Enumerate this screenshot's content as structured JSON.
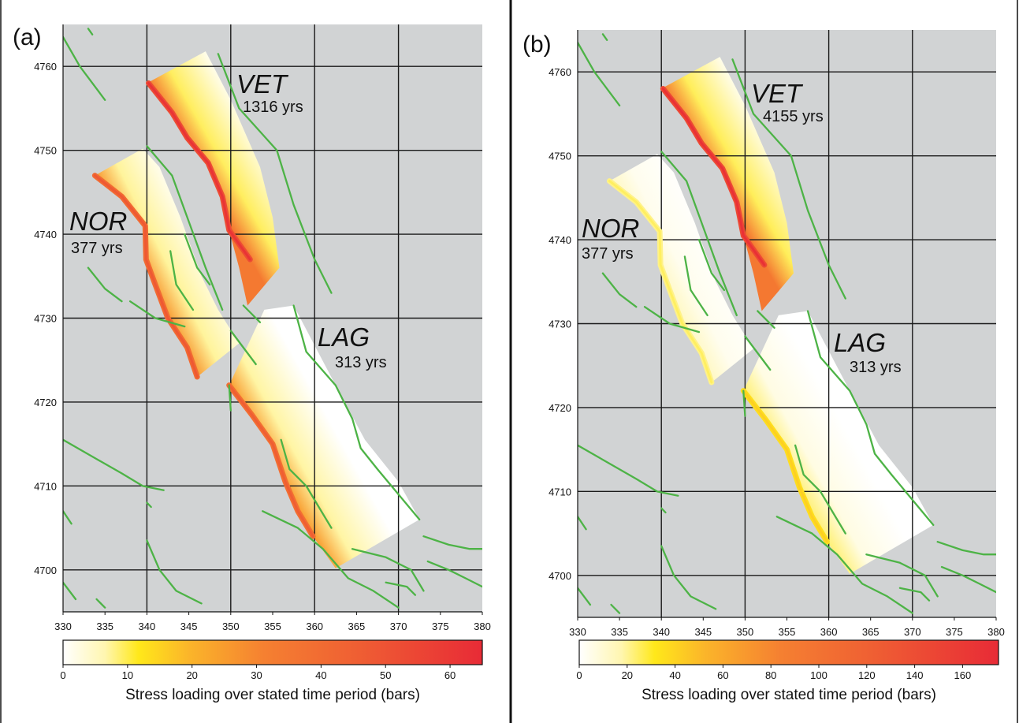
{
  "chart_data": [
    {
      "type": "heatmap",
      "panel_label": "(a)",
      "xlim": [
        330,
        380
      ],
      "ylim": [
        4695,
        4765
      ],
      "x_ticks": [
        330,
        335,
        340,
        345,
        350,
        355,
        360,
        365,
        370,
        375,
        380
      ],
      "y_ticks": [
        4700,
        4710,
        4720,
        4730,
        4740,
        4750,
        4760
      ],
      "grid_x": [
        340,
        350,
        360,
        370
      ],
      "grid_y": [
        4700,
        4710,
        4720,
        4730,
        4740,
        4750,
        4760
      ],
      "colorbar": {
        "label": "Stress loading over stated time period (bars)",
        "min": 0,
        "max": 65,
        "ticks": [
          0,
          10,
          20,
          30,
          40,
          50,
          60
        ]
      },
      "faults": [
        {
          "name": "VET",
          "period": "1316 yrs",
          "max_stress": 62,
          "trace": [
            [
              340.2,
              4758
            ],
            [
              343,
              4754.5
            ],
            [
              344.8,
              4751.5
            ],
            [
              347.3,
              4748.5
            ],
            [
              349,
              4744.5
            ],
            [
              349.8,
              4740.5
            ],
            [
              352.3,
              4737
            ]
          ],
          "patch": [
            [
              340,
              4758
            ],
            [
              347,
              4761.8
            ],
            [
              350,
              4756
            ],
            [
              353.5,
              4748
            ],
            [
              355,
              4742
            ],
            [
              355.8,
              4736
            ],
            [
              352,
              4731.5
            ],
            [
              351,
              4736
            ],
            [
              349.8,
              4740.5
            ],
            [
              349,
              4744.5
            ],
            [
              347.3,
              4748.5
            ],
            [
              344.8,
              4751.5
            ],
            [
              343,
              4754.5
            ]
          ]
        },
        {
          "name": "NOR",
          "period": "377 yrs",
          "max_stress": 48,
          "trace": [
            [
              333.8,
              4747
            ],
            [
              337,
              4744.5
            ],
            [
              339.8,
              4741
            ],
            [
              339.9,
              4737
            ],
            [
              341,
              4734
            ],
            [
              342.5,
              4730
            ],
            [
              344.8,
              4726.5
            ],
            [
              346,
              4723
            ]
          ],
          "patch": [
            [
              333.8,
              4747
            ],
            [
              339.5,
              4750.2
            ],
            [
              341.5,
              4748
            ],
            [
              344,
              4742
            ],
            [
              346.5,
              4735
            ],
            [
              348.5,
              4731
            ],
            [
              351,
              4727
            ],
            [
              346,
              4723
            ],
            [
              344.8,
              4726.5
            ],
            [
              342.5,
              4730
            ],
            [
              341,
              4734
            ],
            [
              339.9,
              4737
            ],
            [
              339.8,
              4741
            ],
            [
              337,
              4744.5
            ]
          ]
        },
        {
          "name": "LAG",
          "period": "313 yrs",
          "max_stress": 46,
          "trace": [
            [
              349.8,
              4722
            ],
            [
              352.5,
              4718.5
            ],
            [
              355,
              4715
            ],
            [
              356.5,
              4710.5
            ],
            [
              358,
              4707
            ],
            [
              359.8,
              4704
            ]
          ],
          "patch": [
            [
              349.8,
              4722
            ],
            [
              354,
              4731
            ],
            [
              357.5,
              4731.5
            ],
            [
              362.5,
              4722
            ],
            [
              366,
              4715.5
            ],
            [
              370,
              4710.5
            ],
            [
              372.5,
              4706
            ],
            [
              362.5,
              4700.2
            ],
            [
              359.8,
              4704
            ],
            [
              358,
              4707
            ],
            [
              356.5,
              4710.5
            ],
            [
              355,
              4715
            ],
            [
              352.5,
              4718.5
            ]
          ]
        }
      ]
    },
    {
      "type": "heatmap",
      "panel_label": "(b)",
      "xlim": [
        330,
        380
      ],
      "ylim": [
        4695,
        4765
      ],
      "x_ticks": [
        330,
        335,
        340,
        345,
        350,
        355,
        360,
        365,
        370,
        375,
        380
      ],
      "y_ticks": [
        4700,
        4710,
        4720,
        4730,
        4740,
        4750,
        4760
      ],
      "grid_x": [
        340,
        350,
        360,
        370
      ],
      "grid_y": [
        4700,
        4710,
        4720,
        4730,
        4740,
        4750,
        4760
      ],
      "colorbar": {
        "label": "Stress loading over stated time period (bars)",
        "min": 0,
        "max": 175,
        "ticks": [
          0,
          20,
          40,
          60,
          80,
          100,
          120,
          140,
          160
        ]
      },
      "faults": [
        {
          "name": "VET",
          "period": "4155 yrs",
          "max_stress": 170,
          "trace": [
            [
              340.2,
              4758
            ],
            [
              343,
              4754.5
            ],
            [
              344.8,
              4751.5
            ],
            [
              347.3,
              4748.5
            ],
            [
              349,
              4744.5
            ],
            [
              349.8,
              4740.5
            ],
            [
              352.3,
              4737
            ]
          ],
          "patch": [
            [
              340,
              4758
            ],
            [
              347,
              4761.8
            ],
            [
              350,
              4756
            ],
            [
              353.5,
              4748
            ],
            [
              355,
              4742
            ],
            [
              355.8,
              4736
            ],
            [
              352,
              4731.5
            ],
            [
              351,
              4736
            ],
            [
              349.8,
              4740.5
            ],
            [
              349,
              4744.5
            ],
            [
              347.3,
              4748.5
            ],
            [
              344.8,
              4751.5
            ],
            [
              343,
              4754.5
            ]
          ]
        },
        {
          "name": "NOR",
          "period": "377 yrs",
          "max_stress": 25,
          "trace": [
            [
              333.8,
              4747
            ],
            [
              337,
              4744.5
            ],
            [
              339.8,
              4741
            ],
            [
              339.9,
              4737
            ],
            [
              341,
              4734
            ],
            [
              342.5,
              4730
            ],
            [
              344.8,
              4726.5
            ],
            [
              346,
              4723
            ]
          ],
          "patch": [
            [
              333.8,
              4747
            ],
            [
              339.5,
              4750.2
            ],
            [
              341.5,
              4748
            ],
            [
              344,
              4742
            ],
            [
              346.5,
              4735
            ],
            [
              348.5,
              4731
            ],
            [
              351,
              4727
            ],
            [
              346,
              4723
            ],
            [
              344.8,
              4726.5
            ],
            [
              342.5,
              4730
            ],
            [
              341,
              4734
            ],
            [
              339.9,
              4737
            ],
            [
              339.8,
              4741
            ],
            [
              337,
              4744.5
            ]
          ]
        },
        {
          "name": "LAG",
          "period": "313 yrs",
          "max_stress": 42,
          "trace": [
            [
              349.8,
              4722
            ],
            [
              352.5,
              4718.5
            ],
            [
              355,
              4715
            ],
            [
              356.5,
              4710.5
            ],
            [
              358,
              4707
            ],
            [
              359.8,
              4704
            ]
          ],
          "patch": [
            [
              349.8,
              4722
            ],
            [
              354,
              4731
            ],
            [
              357.5,
              4731.5
            ],
            [
              362.5,
              4722
            ],
            [
              366,
              4715.5
            ],
            [
              370,
              4710.5
            ],
            [
              372.5,
              4706
            ],
            [
              362.5,
              4700.2
            ],
            [
              359.8,
              4704
            ],
            [
              358,
              4707
            ],
            [
              356.5,
              4710.5
            ],
            [
              355,
              4715
            ],
            [
              352.5,
              4718.5
            ]
          ]
        }
      ],
      "mapped_faults_color": "#4db346",
      "mapped_faults": [
        [
          [
            330,
            4763.5
          ],
          [
            332,
            4760
          ],
          [
            335,
            4756
          ]
        ],
        [
          [
            333,
            4764.5
          ],
          [
            333.5,
            4763.8
          ]
        ],
        [
          [
            340,
            4750.5
          ],
          [
            343,
            4747
          ],
          [
            345,
            4741.5
          ],
          [
            347,
            4736
          ],
          [
            349,
            4731
          ]
        ],
        [
          [
            350,
            4728.5
          ],
          [
            353,
            4724.5
          ]
        ],
        [
          [
            351.5,
            4731.5
          ],
          [
            353.5,
            4729.5
          ]
        ],
        [
          [
            348.5,
            4761.5
          ],
          [
            351,
            4755
          ],
          [
            355.5,
            4750
          ],
          [
            357.5,
            4743.5
          ],
          [
            360,
            4737
          ],
          [
            362,
            4733
          ]
        ],
        [
          [
            342.8,
            4738
          ],
          [
            343.5,
            4734
          ],
          [
            345.5,
            4731
          ]
        ],
        [
          [
            344.5,
            4740
          ],
          [
            346,
            4736
          ],
          [
            347.5,
            4734
          ]
        ],
        [
          [
            333,
            4736
          ],
          [
            335,
            4733.5
          ],
          [
            337,
            4732
          ]
        ],
        [
          [
            338,
            4732
          ],
          [
            341,
            4730
          ],
          [
            344.5,
            4729
          ]
        ],
        [
          [
            349.8,
            4722
          ],
          [
            350,
            4719
          ]
        ],
        [
          [
            356,
            4715.5
          ],
          [
            357,
            4712
          ],
          [
            359,
            4710
          ],
          [
            360.5,
            4707.5
          ],
          [
            362,
            4705
          ]
        ],
        [
          [
            357.5,
            4731.5
          ],
          [
            359,
            4726
          ],
          [
            362.5,
            4722
          ],
          [
            364.5,
            4718
          ],
          [
            365.5,
            4714.5
          ],
          [
            367.5,
            4712
          ],
          [
            372.5,
            4706
          ]
        ],
        [
          [
            330,
            4715.5
          ],
          [
            333.5,
            4713.5
          ],
          [
            337,
            4711.5
          ],
          [
            339.5,
            4710
          ],
          [
            342,
            4709.5
          ]
        ],
        [
          [
            330,
            4707
          ],
          [
            331,
            4705.5
          ]
        ],
        [
          [
            340,
            4708
          ],
          [
            340.5,
            4707.5
          ]
        ],
        [
          [
            340,
            4703.5
          ],
          [
            341.5,
            4700
          ],
          [
            343.5,
            4697.5
          ],
          [
            346.5,
            4696
          ]
        ],
        [
          [
            330,
            4698.5
          ],
          [
            331.5,
            4696.5
          ]
        ],
        [
          [
            334,
            4696.5
          ],
          [
            335,
            4695.5
          ]
        ],
        [
          [
            353.8,
            4707
          ],
          [
            358,
            4705
          ],
          [
            361,
            4702.5
          ],
          [
            364,
            4699
          ],
          [
            367,
            4697.5
          ],
          [
            370,
            4695.5
          ]
        ],
        [
          [
            364.5,
            4702.5
          ],
          [
            368.5,
            4701.5
          ],
          [
            371.5,
            4700
          ],
          [
            373,
            4697.5
          ]
        ],
        [
          [
            368.5,
            4698.5
          ],
          [
            371,
            4698
          ],
          [
            372,
            4697
          ]
        ],
        [
          [
            373,
            4704
          ],
          [
            376,
            4703
          ],
          [
            378.5,
            4702.5
          ],
          [
            380,
            4702.5
          ]
        ],
        [
          [
            373.5,
            4701
          ],
          [
            376,
            4700
          ],
          [
            378,
            4699
          ],
          [
            380,
            4698
          ]
        ]
      ]
    }
  ]
}
